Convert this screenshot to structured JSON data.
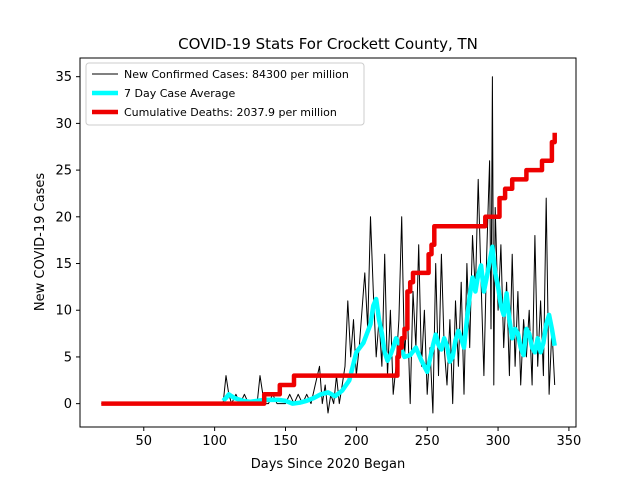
{
  "chart_data": {
    "type": "line",
    "title": "COVID-19 Stats For Crockett County, TN",
    "xlabel": "Days Since 2020 Began",
    "ylabel": "New COVID-19 Cases",
    "xlim": [
      5,
      355
    ],
    "ylim": [
      -2.5,
      37
    ],
    "xticks": [
      50,
      100,
      150,
      200,
      250,
      300,
      350
    ],
    "yticks": [
      0,
      5,
      10,
      15,
      20,
      25,
      30,
      35
    ],
    "legend_position": "top-left",
    "series": [
      {
        "name": "New Confirmed Cases: 84300 per million",
        "color": "#000000",
        "width": "thin",
        "x": [
          20,
          106,
          108,
          110,
          112,
          115,
          118,
          121,
          124,
          127,
          130,
          132,
          135,
          138,
          141,
          144,
          147,
          150,
          153,
          156,
          159,
          162,
          165,
          168,
          171,
          174,
          176,
          178,
          180,
          182,
          184,
          186,
          188,
          190,
          192,
          194,
          196,
          198,
          200,
          202,
          204,
          206,
          208,
          210,
          212,
          214,
          216,
          218,
          220,
          222,
          224,
          226,
          228,
          230,
          232,
          234,
          236,
          238,
          240,
          242,
          244,
          246,
          248,
          250,
          252,
          254,
          256,
          258,
          260,
          262,
          264,
          266,
          268,
          270,
          272,
          274,
          276,
          278,
          280,
          282,
          284,
          286,
          288,
          290,
          292,
          294,
          295,
          296,
          297,
          298,
          300,
          302,
          304,
          306,
          308,
          310,
          312,
          314,
          316,
          318,
          320,
          322,
          324,
          326,
          328,
          330,
          332,
          334,
          336,
          338,
          340
        ],
        "y": [
          0,
          0,
          3,
          1,
          0,
          1,
          0,
          1,
          0,
          0,
          0,
          3,
          0,
          0,
          1,
          0,
          0,
          0,
          1,
          0,
          1,
          0,
          1,
          0,
          2,
          4,
          0,
          2,
          -1,
          1,
          0,
          3,
          0,
          2,
          4,
          11,
          5,
          9,
          3,
          6,
          10,
          14,
          8,
          20,
          12,
          5,
          9,
          4,
          16,
          3,
          10,
          1,
          4,
          9,
          20,
          5,
          10,
          0,
          12,
          6,
          17,
          4,
          10,
          1,
          6,
          -1,
          15,
          3,
          16,
          6,
          2,
          9,
          0,
          11,
          4,
          13,
          1,
          15,
          6,
          18,
          12,
          24,
          13,
          3,
          16,
          26,
          8,
          35,
          2,
          21,
          10,
          17,
          6,
          13,
          3,
          16,
          4,
          12,
          2,
          9,
          5,
          10,
          2,
          18,
          4,
          11,
          3,
          22,
          1,
          8,
          2
        ]
      },
      {
        "name": "7 Day Case Average",
        "color": "#00ffff",
        "width": "thick",
        "x": [
          106,
          108,
          110,
          112,
          114,
          116,
          118,
          120,
          125,
          130,
          135,
          140,
          145,
          150,
          155,
          160,
          165,
          170,
          175,
          180,
          185,
          190,
          195,
          200,
          205,
          210,
          212,
          214,
          216,
          218,
          220,
          222,
          224,
          226,
          228,
          230,
          234,
          238,
          242,
          246,
          250,
          252,
          254,
          256,
          258,
          260,
          262,
          264,
          266,
          268,
          270,
          272,
          274,
          276,
          278,
          280,
          282,
          284,
          286,
          288,
          290,
          292,
          294,
          296,
          298,
          300,
          302,
          304,
          306,
          308,
          310,
          312,
          314,
          316,
          318,
          320,
          322,
          324,
          326,
          328,
          330,
          332,
          334,
          336,
          338,
          340
        ],
        "y": [
          0.3,
          0.6,
          1.0,
          0.8,
          0.6,
          0.5,
          0.4,
          0.3,
          0.2,
          0.3,
          0.4,
          0.4,
          0.4,
          0.3,
          0.0,
          0.1,
          0.3,
          0.6,
          1.0,
          1.2,
          0.8,
          1.4,
          2.5,
          5.5,
          6.5,
          8.5,
          10.5,
          11.2,
          9.0,
          7.5,
          5.5,
          4.6,
          5.2,
          6.0,
          7.0,
          6.5,
          5.0,
          5.2,
          6.0,
          4.6,
          3.4,
          4.8,
          6.2,
          7.4,
          6.3,
          5.8,
          7.0,
          6.2,
          4.5,
          5.0,
          6.8,
          7.8,
          7.0,
          6.0,
          9.0,
          11.5,
          13.5,
          12.0,
          13.8,
          14.8,
          12.0,
          13.5,
          15.2,
          16.8,
          14.0,
          12.5,
          10.5,
          9.5,
          11.8,
          9.0,
          7.0,
          8.0,
          7.5,
          6.0,
          5.2,
          8.0,
          7.5,
          6.0,
          5.5,
          7.0,
          5.5,
          6.5,
          8.5,
          9.5,
          8.0,
          6.2
        ]
      },
      {
        "name": "Cumulative Deaths: 2037.9 per million",
        "color": "#ee0000",
        "width": "thick",
        "step": true,
        "x": [
          20,
          133,
          135,
          145,
          146,
          155,
          156,
          200,
          205,
          210,
          215,
          225,
          229,
          230,
          232,
          234,
          236,
          238,
          240,
          250,
          251,
          253,
          255,
          260,
          290,
          291,
          300,
          301,
          305,
          310,
          315,
          320,
          330,
          331,
          335,
          338,
          340
        ],
        "y": [
          0,
          0,
          1,
          1,
          2,
          2,
          3,
          3,
          3,
          3,
          3,
          3,
          5,
          6,
          7,
          8,
          12,
          13,
          14,
          14,
          16,
          17,
          19,
          19,
          19,
          20,
          20,
          22,
          23,
          24,
          24,
          25,
          25,
          26,
          26,
          28,
          29
        ]
      }
    ]
  }
}
